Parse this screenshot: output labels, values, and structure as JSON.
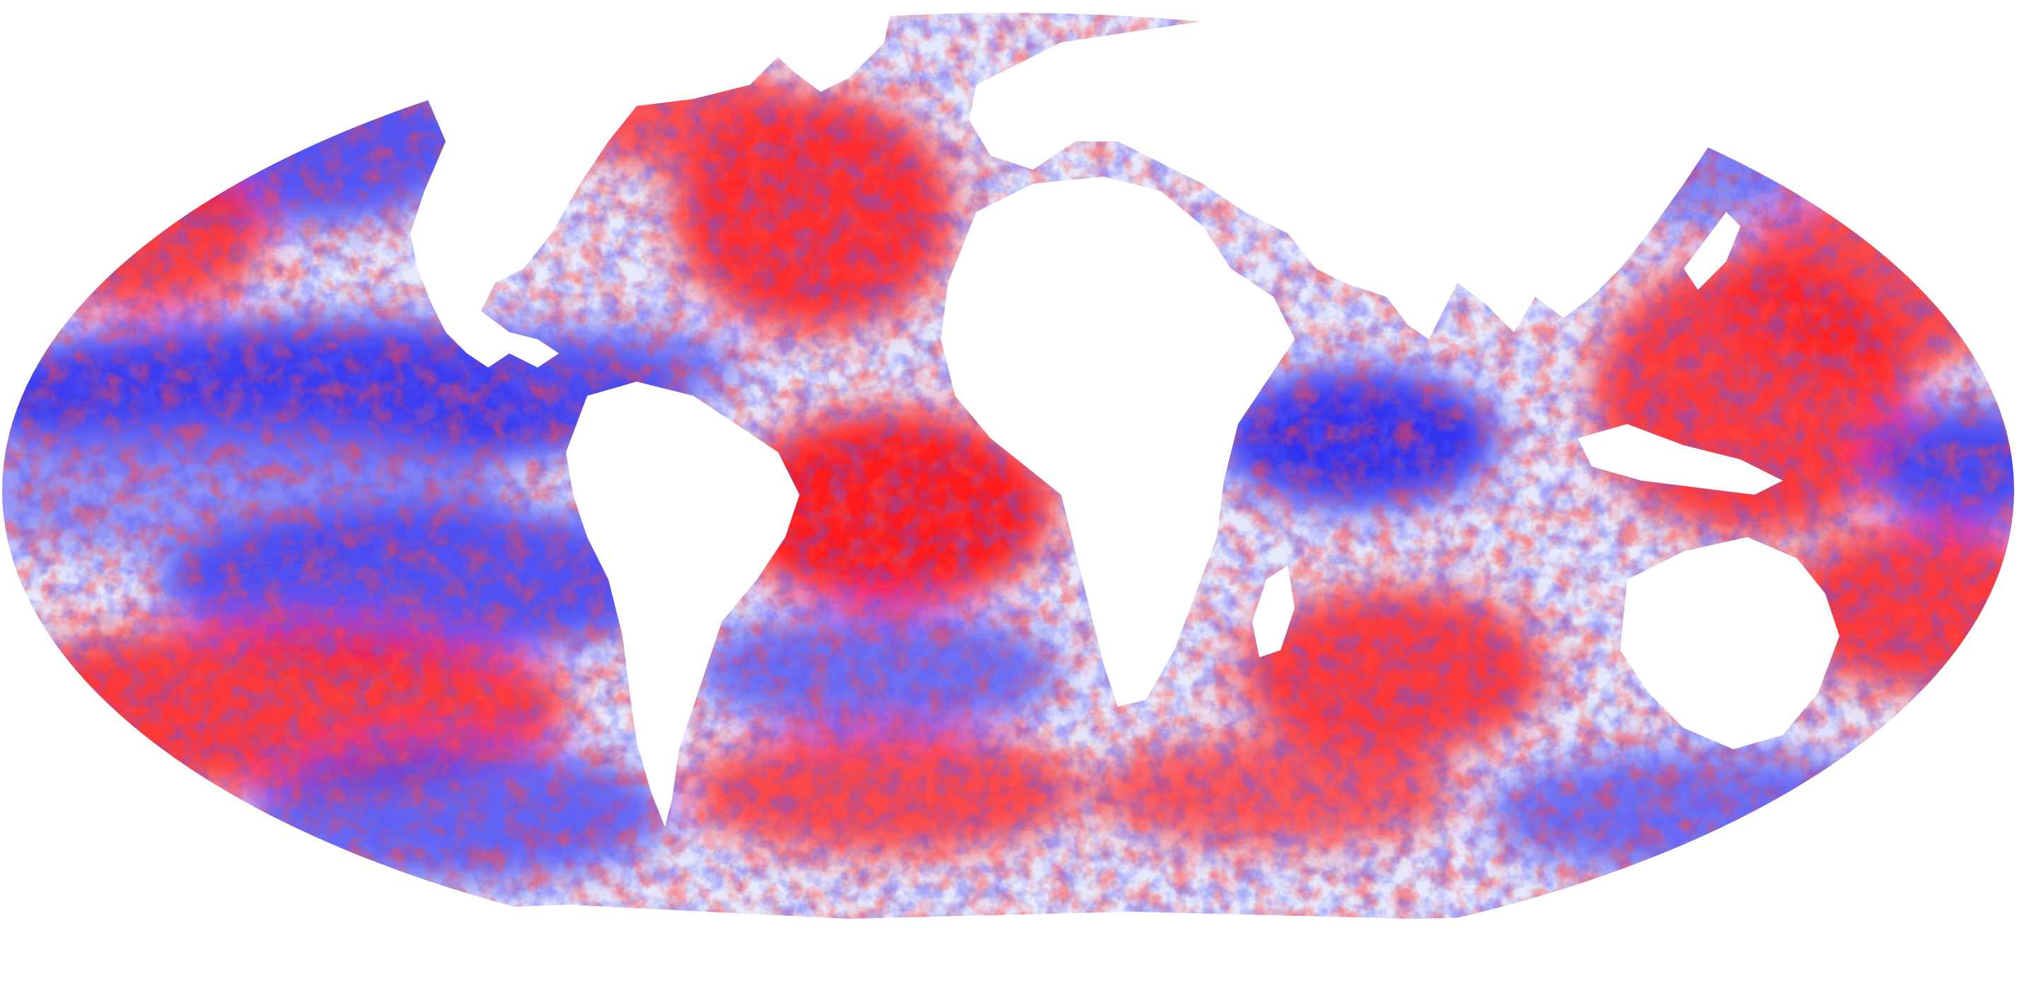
{
  "map": {
    "projection": "robinson",
    "scheme": "diverging",
    "colors": {
      "positive": "#ff1010",
      "negative": "#1a1aee",
      "neutral": "#ffffff",
      "land": "#ffffff"
    }
  }
}
